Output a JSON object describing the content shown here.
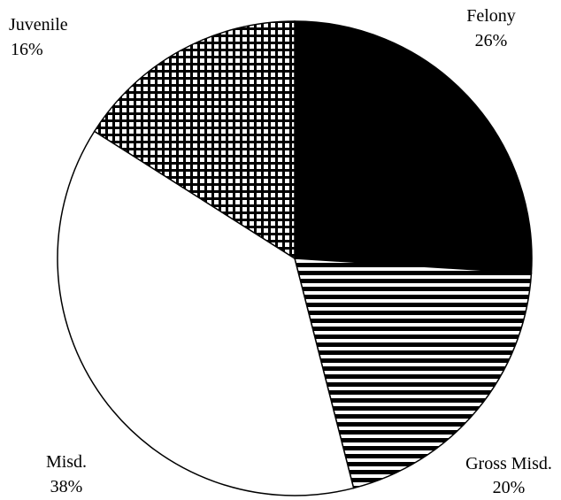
{
  "chart_data": {
    "type": "pie",
    "categories": [
      "Felony",
      "Gross Misd.",
      "Misd.",
      "Juvenile"
    ],
    "values": [
      26,
      20,
      38,
      16
    ],
    "value_labels": [
      "26%",
      "20%",
      "38%",
      "16%"
    ],
    "fills": [
      "solid",
      "horizontal-stripes",
      "blank",
      "grid"
    ],
    "color": "#000000"
  }
}
